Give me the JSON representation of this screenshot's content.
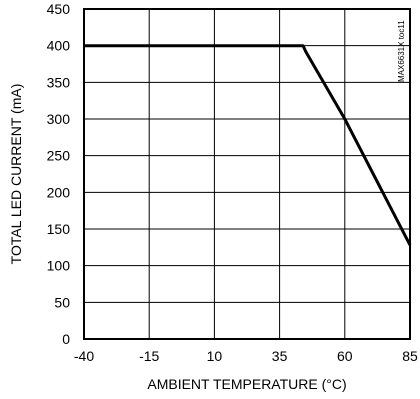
{
  "chart_data": {
    "type": "line",
    "title": "",
    "xlabel": "AMBIENT TEMPERATURE (°C)",
    "ylabel": "TOTAL LED CURRENT (mA)",
    "xlim": [
      -40,
      85
    ],
    "ylim": [
      0,
      450
    ],
    "x_ticks": [
      -40,
      -15,
      10,
      35,
      60,
      85
    ],
    "y_ticks": [
      0,
      50,
      100,
      150,
      200,
      250,
      300,
      350,
      400,
      450
    ],
    "grid": true,
    "legend": "none",
    "series": [
      {
        "x": [
          -40,
          44,
          45,
          60,
          85
        ],
        "y": [
          400,
          400,
          392,
          300,
          128
        ]
      }
    ],
    "annotations": [
      "MAX6631X toc11"
    ]
  }
}
